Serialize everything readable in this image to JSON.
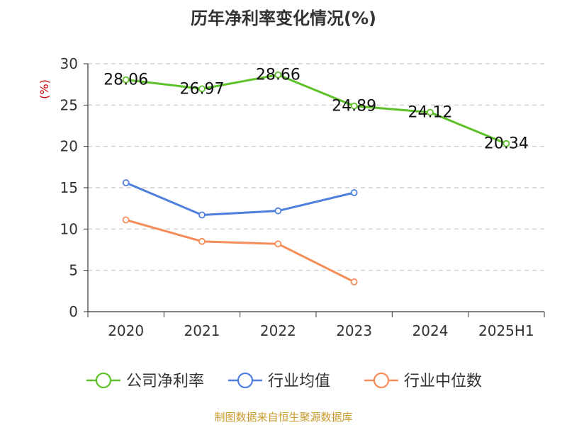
{
  "chart_data": {
    "type": "line",
    "title": "历年净利率变化情况(%)",
    "ylabel": "(%)",
    "xlabel": "",
    "categories": [
      "2020",
      "2021",
      "2022",
      "2023",
      "2024",
      "2025H1"
    ],
    "ylim": [
      0,
      30
    ],
    "yticks": [
      "0",
      "5",
      "10",
      "15",
      "20",
      "25",
      "30"
    ],
    "grid": "horizontal dashed",
    "legend_position": "bottom",
    "series": [
      {
        "name": "公司净利率",
        "color": "#5ec12a",
        "values": [
          28.06,
          26.97,
          28.66,
          24.89,
          24.12,
          20.34
        ],
        "labels": [
          "28.06",
          "26.97",
          "28.66",
          "24.89",
          "24.12",
          "20.34"
        ]
      },
      {
        "name": "行业均值",
        "color": "#4f7fdc",
        "values": [
          15.6,
          11.7,
          12.2,
          14.4,
          null,
          null
        ]
      },
      {
        "name": "行业中位数",
        "color": "#f58d5b",
        "values": [
          11.1,
          8.5,
          8.2,
          3.6,
          null,
          null
        ]
      }
    ],
    "source": "制图数据来自恒生聚源数据库",
    "source_color": "#c89a2b",
    "title_color": "#333333",
    "ylabel_color": "#cc0000"
  }
}
